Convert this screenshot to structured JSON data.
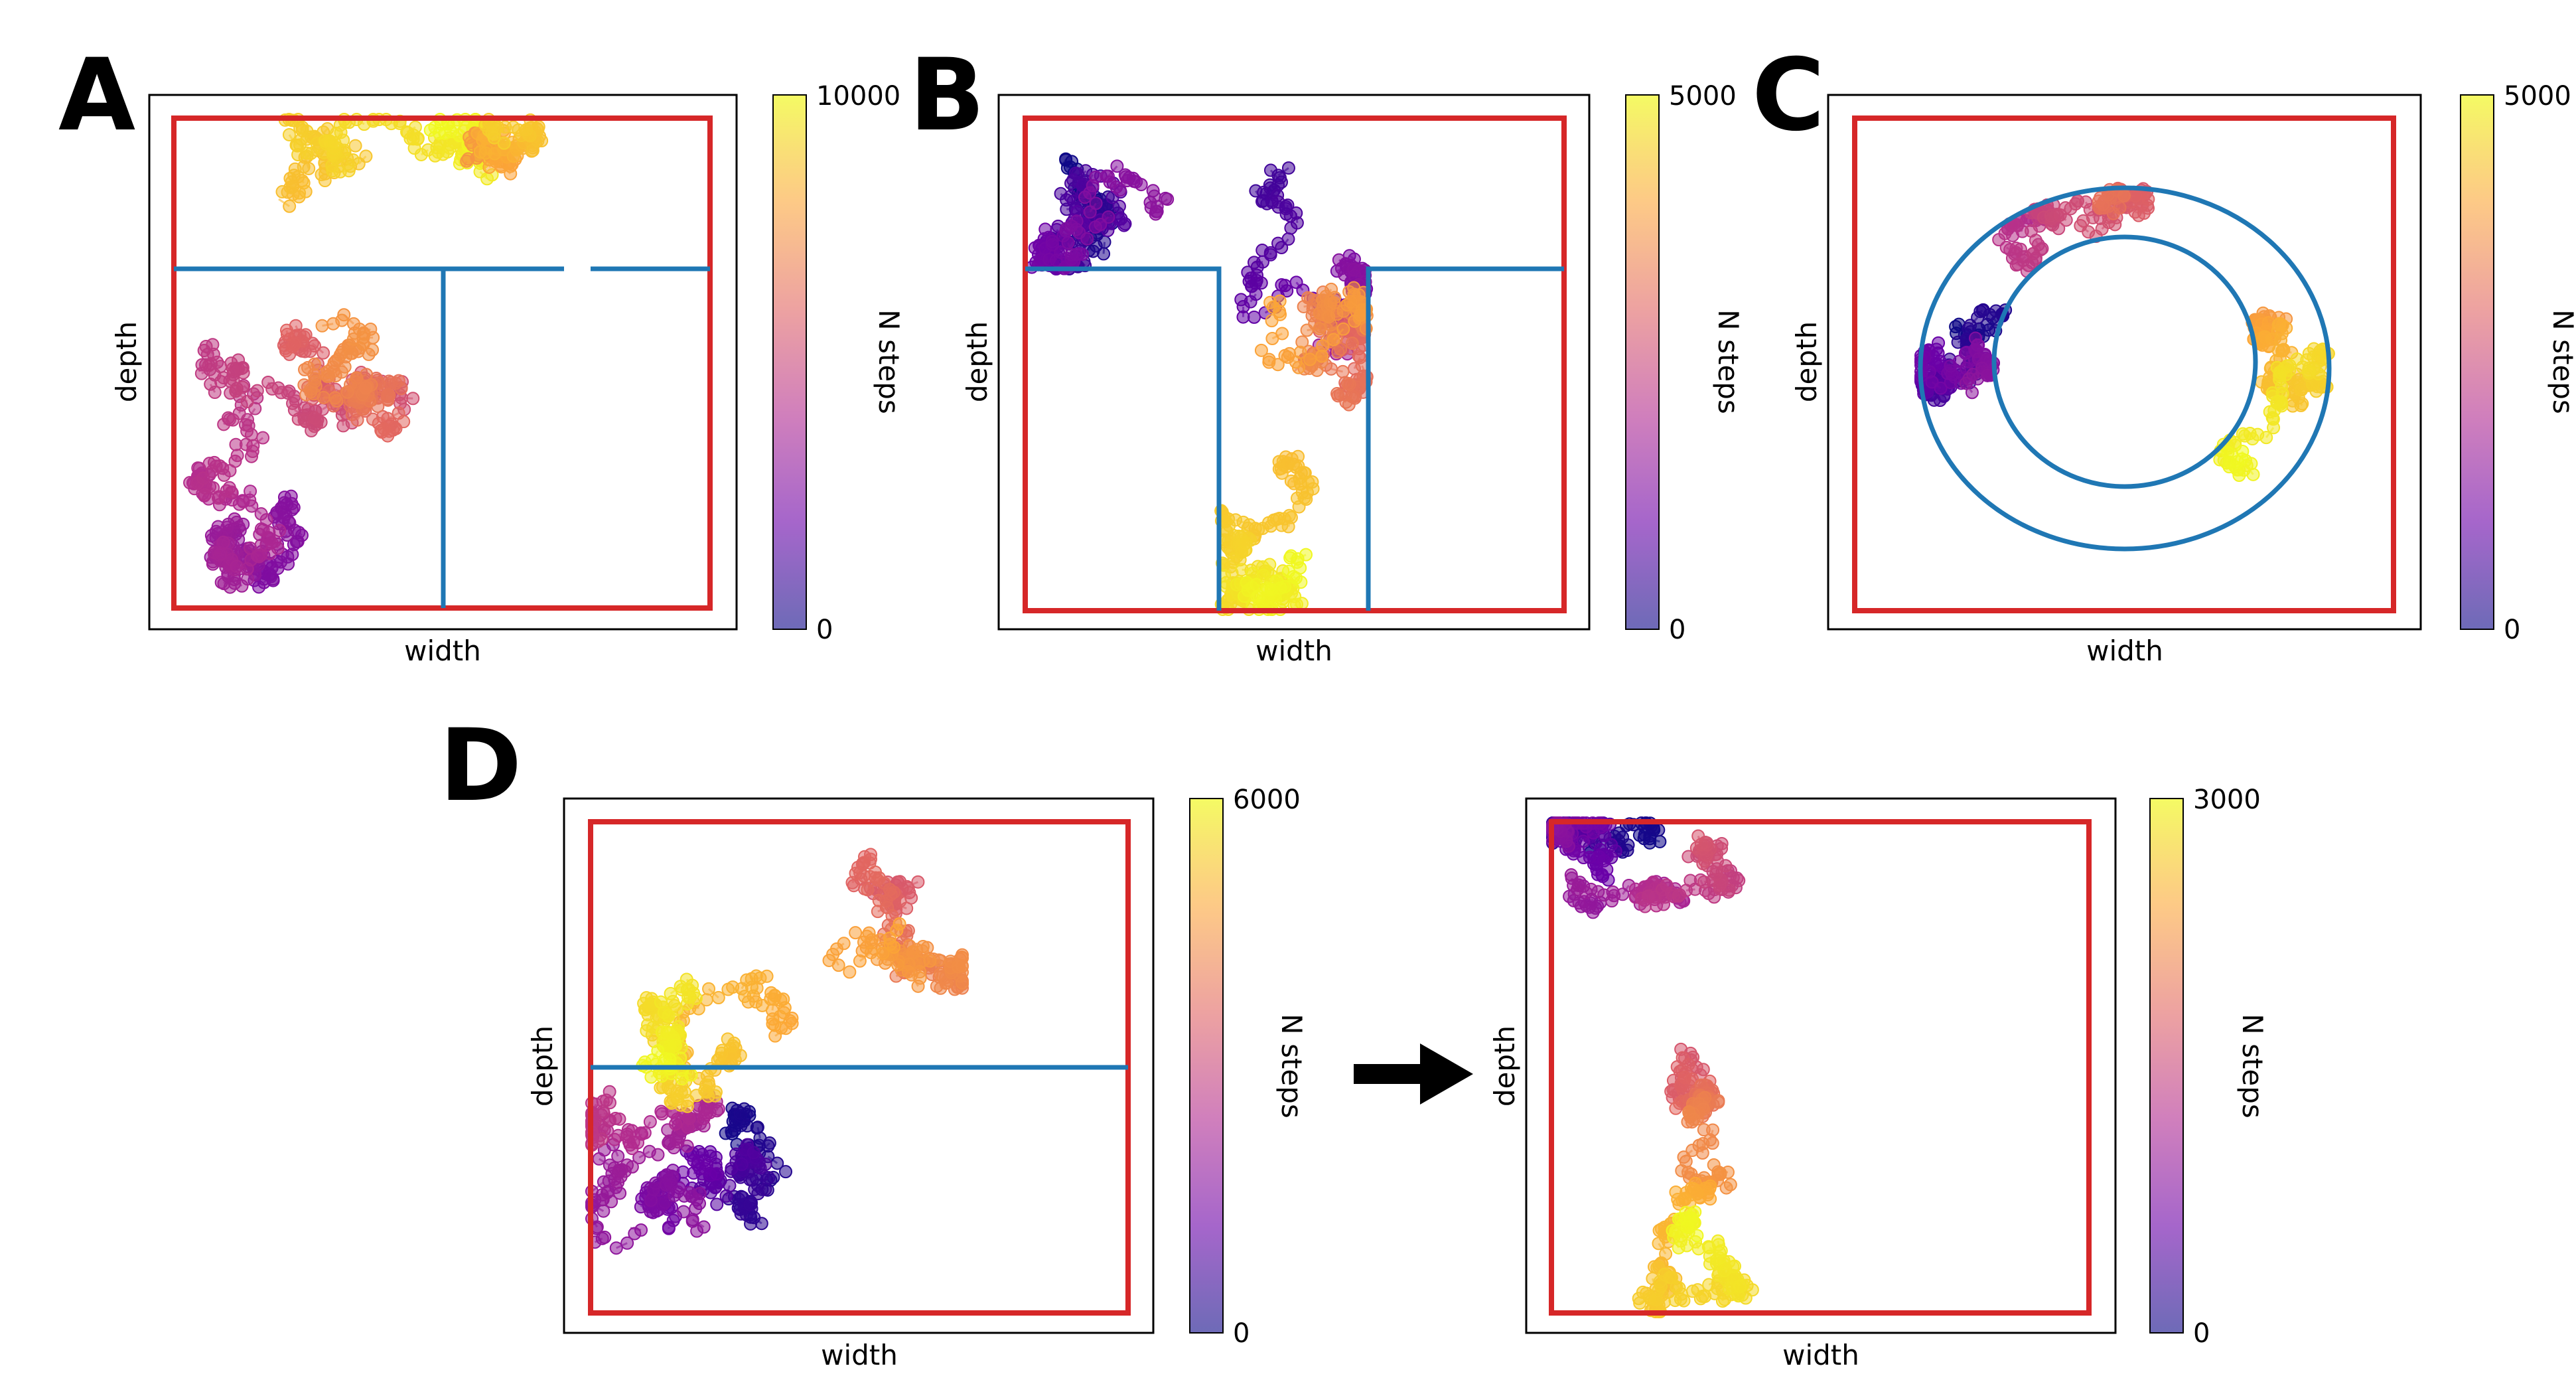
{
  "figure": {
    "panels": [
      {
        "letter": "A",
        "xlabel": "width",
        "ylabel": "depth",
        "colorbar_label": "N steps",
        "colorbar_ticks": [
          "10000",
          "0"
        ]
      },
      {
        "letter": "B",
        "xlabel": "width",
        "ylabel": "depth",
        "colorbar_label": "N steps",
        "colorbar_ticks": [
          "5000",
          "0"
        ]
      },
      {
        "letter": "C",
        "xlabel": "width",
        "ylabel": "depth",
        "colorbar_label": "N steps",
        "colorbar_ticks": [
          "5000",
          "0"
        ]
      },
      {
        "letter": "D",
        "xlabel": "width",
        "ylabel": "depth",
        "colorbar_label": "N steps",
        "colorbar_ticks": [
          "6000",
          "0"
        ]
      },
      {
        "letter": "",
        "xlabel": "width",
        "ylabel": "depth",
        "colorbar_label": "N steps",
        "colorbar_ticks": [
          "3000",
          "0"
        ]
      }
    ]
  },
  "colors": {
    "arena_boundary": "#d62728",
    "maze_walls": "#1f77b4",
    "colormap": "plasma",
    "colormap_stops": [
      "#0d0887",
      "#6a00a8",
      "#b12a90",
      "#e16462",
      "#fca636",
      "#f0f921"
    ],
    "arrow": "#000000"
  },
  "chart_data": [
    {
      "panel": "A",
      "type": "scatter",
      "description_of_trajectory": "random walk colored by step index",
      "colorbar_range": [
        0,
        10000
      ],
      "walls": "square-corridor"
    },
    {
      "panel": "B",
      "type": "scatter",
      "colorbar_range": [
        0,
        5000
      ],
      "walls": "T-maze"
    },
    {
      "panel": "C",
      "type": "scatter",
      "colorbar_range": [
        0,
        5000
      ],
      "walls": "annulus"
    },
    {
      "panel": "D-left",
      "type": "scatter",
      "colorbar_range": [
        0,
        6000
      ],
      "walls": "horizontal divider"
    },
    {
      "panel": "D-right",
      "type": "scatter",
      "colorbar_range": [
        0,
        3000
      ],
      "walls": "none"
    }
  ]
}
